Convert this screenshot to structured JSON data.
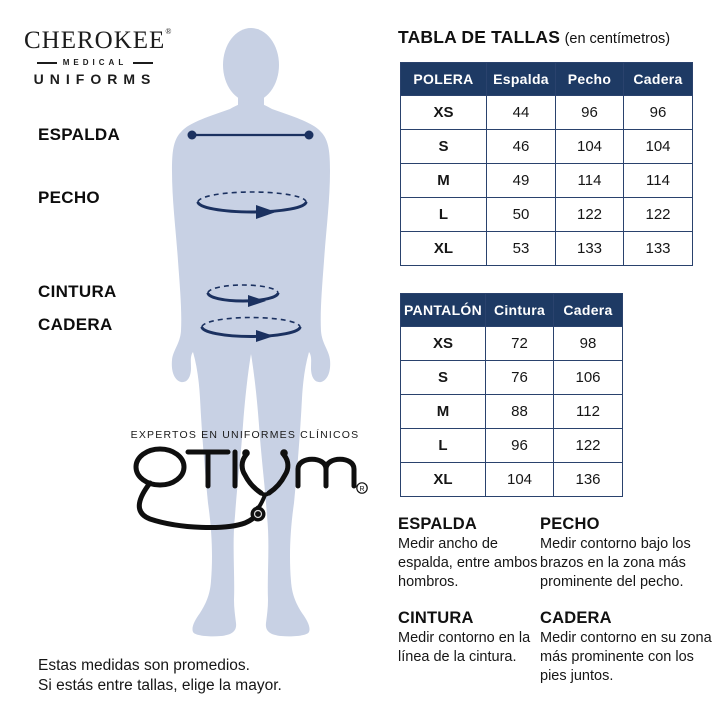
{
  "brand": {
    "name": "CHEROKEE",
    "registered": "®",
    "division": "MEDICAL",
    "subtitle": "UNIFORMS"
  },
  "title": {
    "main": "TABLA DE TALLAS",
    "unit_note": "(en centímetros)"
  },
  "body_labels": {
    "espalda": "ESPALDA",
    "pecho": "PECHO",
    "cintura": "CINTURA",
    "cadera": "CADERA"
  },
  "tables": {
    "polera": {
      "header": [
        "POLERA",
        "Espalda",
        "Pecho",
        "Cadera"
      ],
      "rows": [
        [
          "XS",
          "44",
          "96",
          "96"
        ],
        [
          "S",
          "46",
          "104",
          "104"
        ],
        [
          "M",
          "49",
          "114",
          "114"
        ],
        [
          "L",
          "50",
          "122",
          "122"
        ],
        [
          "XL",
          "53",
          "133",
          "133"
        ]
      ]
    },
    "pantalon": {
      "header": [
        "PANTALÓN",
        "Cintura",
        "Cadera"
      ],
      "rows": [
        [
          "XS",
          "72",
          "98"
        ],
        [
          "S",
          "76",
          "106"
        ],
        [
          "M",
          "88",
          "112"
        ],
        [
          "L",
          "96",
          "122"
        ],
        [
          "XL",
          "104",
          "136"
        ]
      ]
    }
  },
  "measure_guide": [
    {
      "term": "ESPALDA",
      "text": "Medir ancho de espalda, entre ambos hombros."
    },
    {
      "term": "PECHO",
      "text": "Medir contorno bajo los brazos en la zona más prominente del pecho."
    },
    {
      "term": "CINTURA",
      "text": "Medir contorno en la línea de la cintura."
    },
    {
      "term": "CADERA",
      "text": "Medir contorno en su zona más prominente con los pies juntos."
    }
  ],
  "otium": {
    "tagline": "EXPERTOS EN UNIFORMES CLÍNICOS",
    "name": "OTIUM",
    "registered": "R"
  },
  "footnote": {
    "line1": "Estas medidas son promedios.",
    "line2": "Si estás entre tallas, elige la mayor."
  },
  "colors": {
    "header_navy": "#1e3a64",
    "line_navy": "#1b3160",
    "silhouette_blue": "#c8d1e4",
    "text_black": "#111111"
  }
}
